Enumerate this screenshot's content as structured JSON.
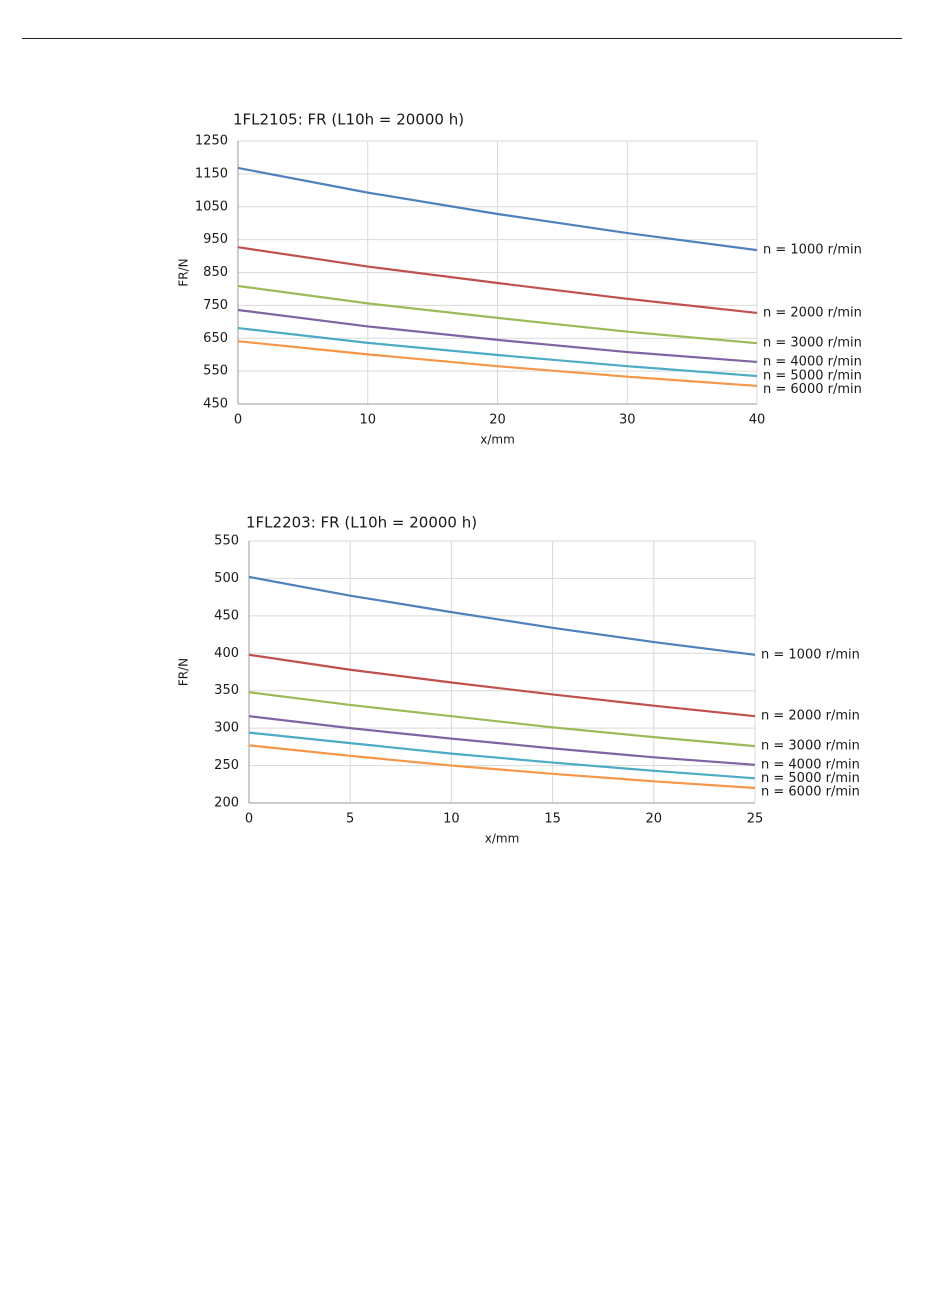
{
  "chart_data": [
    {
      "type": "line",
      "title": "1FL2105: FR (L10h = 20000 h)",
      "x_label": "x/mm",
      "y_label": "FR/N",
      "x": [
        0,
        10,
        20,
        30,
        40
      ],
      "xlim": [
        0,
        40
      ],
      "xticks": [
        0,
        10,
        20,
        30,
        40
      ],
      "ylim": [
        450,
        1250
      ],
      "yticks": [
        450,
        550,
        650,
        750,
        850,
        950,
        1050,
        1150,
        1250
      ],
      "grid": true,
      "series": [
        {
          "name": "n = 1000 r/min",
          "color": "#4f81bd",
          "values": [
            1168,
            1093,
            1028,
            970,
            918
          ]
        },
        {
          "name": "n = 2000 r/min",
          "color": "#c0504d",
          "values": [
            927,
            868,
            818,
            770,
            727
          ]
        },
        {
          "name": "n = 3000 r/min",
          "color": "#9bbb59",
          "values": [
            809,
            756,
            712,
            670,
            635
          ]
        },
        {
          "name": "n = 4000 r/min",
          "color": "#8064a2",
          "values": [
            736,
            686,
            645,
            608,
            578
          ]
        },
        {
          "name": "n = 5000 r/min",
          "color": "#4bacc6",
          "values": [
            681,
            636,
            599,
            565,
            535
          ]
        },
        {
          "name": "n = 6000 r/min",
          "color": "#f79646",
          "values": [
            641,
            601,
            565,
            533,
            505
          ]
        }
      ]
    },
    {
      "type": "line",
      "title": "1FL2203: FR (L10h = 20000 h)",
      "x_label": "x/mm",
      "y_label": "FR/N",
      "x": [
        0,
        5,
        10,
        15,
        20,
        25
      ],
      "xlim": [
        0,
        25
      ],
      "xticks": [
        0,
        5,
        10,
        15,
        20,
        25
      ],
      "ylim": [
        200,
        550
      ],
      "yticks": [
        200,
        250,
        300,
        350,
        400,
        450,
        500,
        550
      ],
      "grid": true,
      "series": [
        {
          "name": "n = 1000 r/min",
          "color": "#4f81bd",
          "values": [
            502,
            477,
            455,
            434,
            415,
            398
          ]
        },
        {
          "name": "n = 2000 r/min",
          "color": "#c0504d",
          "values": [
            398,
            378,
            361,
            345,
            330,
            316
          ]
        },
        {
          "name": "n = 3000 r/min",
          "color": "#9bbb59",
          "values": [
            348,
            331,
            316,
            301,
            288,
            276
          ]
        },
        {
          "name": "n = 4000 r/min",
          "color": "#8064a2",
          "values": [
            316,
            300,
            286,
            273,
            261,
            251
          ]
        },
        {
          "name": "n = 5000 r/min",
          "color": "#4bacc6",
          "values": [
            294,
            280,
            266,
            254,
            243,
            233
          ]
        },
        {
          "name": "n = 6000 r/min",
          "color": "#f79646",
          "values": [
            277,
            263,
            250,
            239,
            229,
            220
          ]
        }
      ]
    }
  ]
}
